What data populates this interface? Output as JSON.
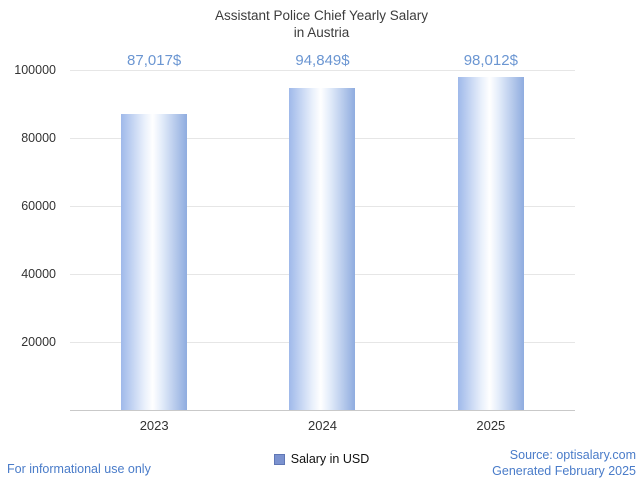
{
  "title": {
    "line1": "Assistant Police Chief Yearly Salary",
    "line2": "in Austria"
  },
  "chart_data": {
    "type": "bar",
    "title": "Assistant Police Chief Yearly Salary in Austria",
    "categories": [
      "2023",
      "2024",
      "2025"
    ],
    "values": [
      87017,
      94849,
      98012
    ],
    "value_labels": [
      "87,017$",
      "94,849$",
      "98,012$"
    ],
    "series_name": "Salary in USD",
    "xlabel": "",
    "ylabel": "",
    "ylim": [
      0,
      100000
    ],
    "yticks": [
      20000,
      40000,
      60000,
      80000,
      100000
    ],
    "grid": true,
    "legend_position": "bottom"
  },
  "legend": {
    "label": "Salary in USD",
    "swatch_color": "#7b92cf"
  },
  "footer": {
    "left": "For informational use only",
    "source": "Source: optisalary.com",
    "generated": "Generated February 2025"
  },
  "colors": {
    "value_label_text": "#6b96d2",
    "footer_text": "#4a7cc9",
    "bar_gradient_edge": "#9fb9ea",
    "bar_gradient_center": "#ffffff",
    "gridline": "#e6e6e6",
    "axis_line": "#c9c9c9",
    "title_text": "#3c3c3c"
  }
}
